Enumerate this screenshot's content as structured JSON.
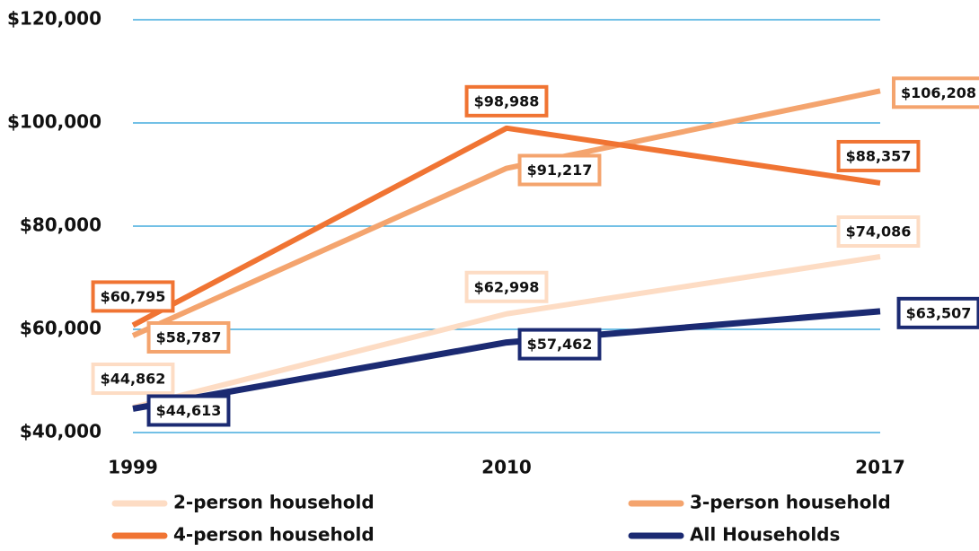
{
  "chart_data": {
    "type": "line",
    "categories": [
      "1999",
      "2010",
      "2017"
    ],
    "ylim": [
      40000,
      120000
    ],
    "yticks": [
      {
        "value": 40000,
        "label": "$40,000"
      },
      {
        "value": 60000,
        "label": "$60,000"
      },
      {
        "value": 80000,
        "label": "$80,000"
      },
      {
        "value": 100000,
        "label": "$100,000"
      },
      {
        "value": 120000,
        "label": "$120,000"
      }
    ],
    "grid": true,
    "grid_color": "#1e9ad6",
    "legend": "bottom",
    "series": [
      {
        "name": "2-person household",
        "color": "#fddcc4",
        "values": [
          44862,
          62998,
          74086
        ],
        "value_labels": [
          "$44,862",
          "$62,998",
          "$74,086"
        ]
      },
      {
        "name": "3-person household",
        "color": "#f4a46e",
        "values": [
          58787,
          91217,
          106208
        ],
        "value_labels": [
          "$58,787",
          "$91,217",
          "$106,208"
        ]
      },
      {
        "name": "4-person household",
        "color": "#f07433",
        "values": [
          60795,
          98988,
          88357
        ],
        "value_labels": [
          "$60,795",
          "$98,988",
          "$88,357"
        ]
      },
      {
        "name": "All Households",
        "color": "#1b2a72",
        "values": [
          44613,
          57462,
          63507
        ],
        "value_labels": [
          "$44,613",
          "$57,462",
          "$63,507"
        ]
      }
    ]
  }
}
